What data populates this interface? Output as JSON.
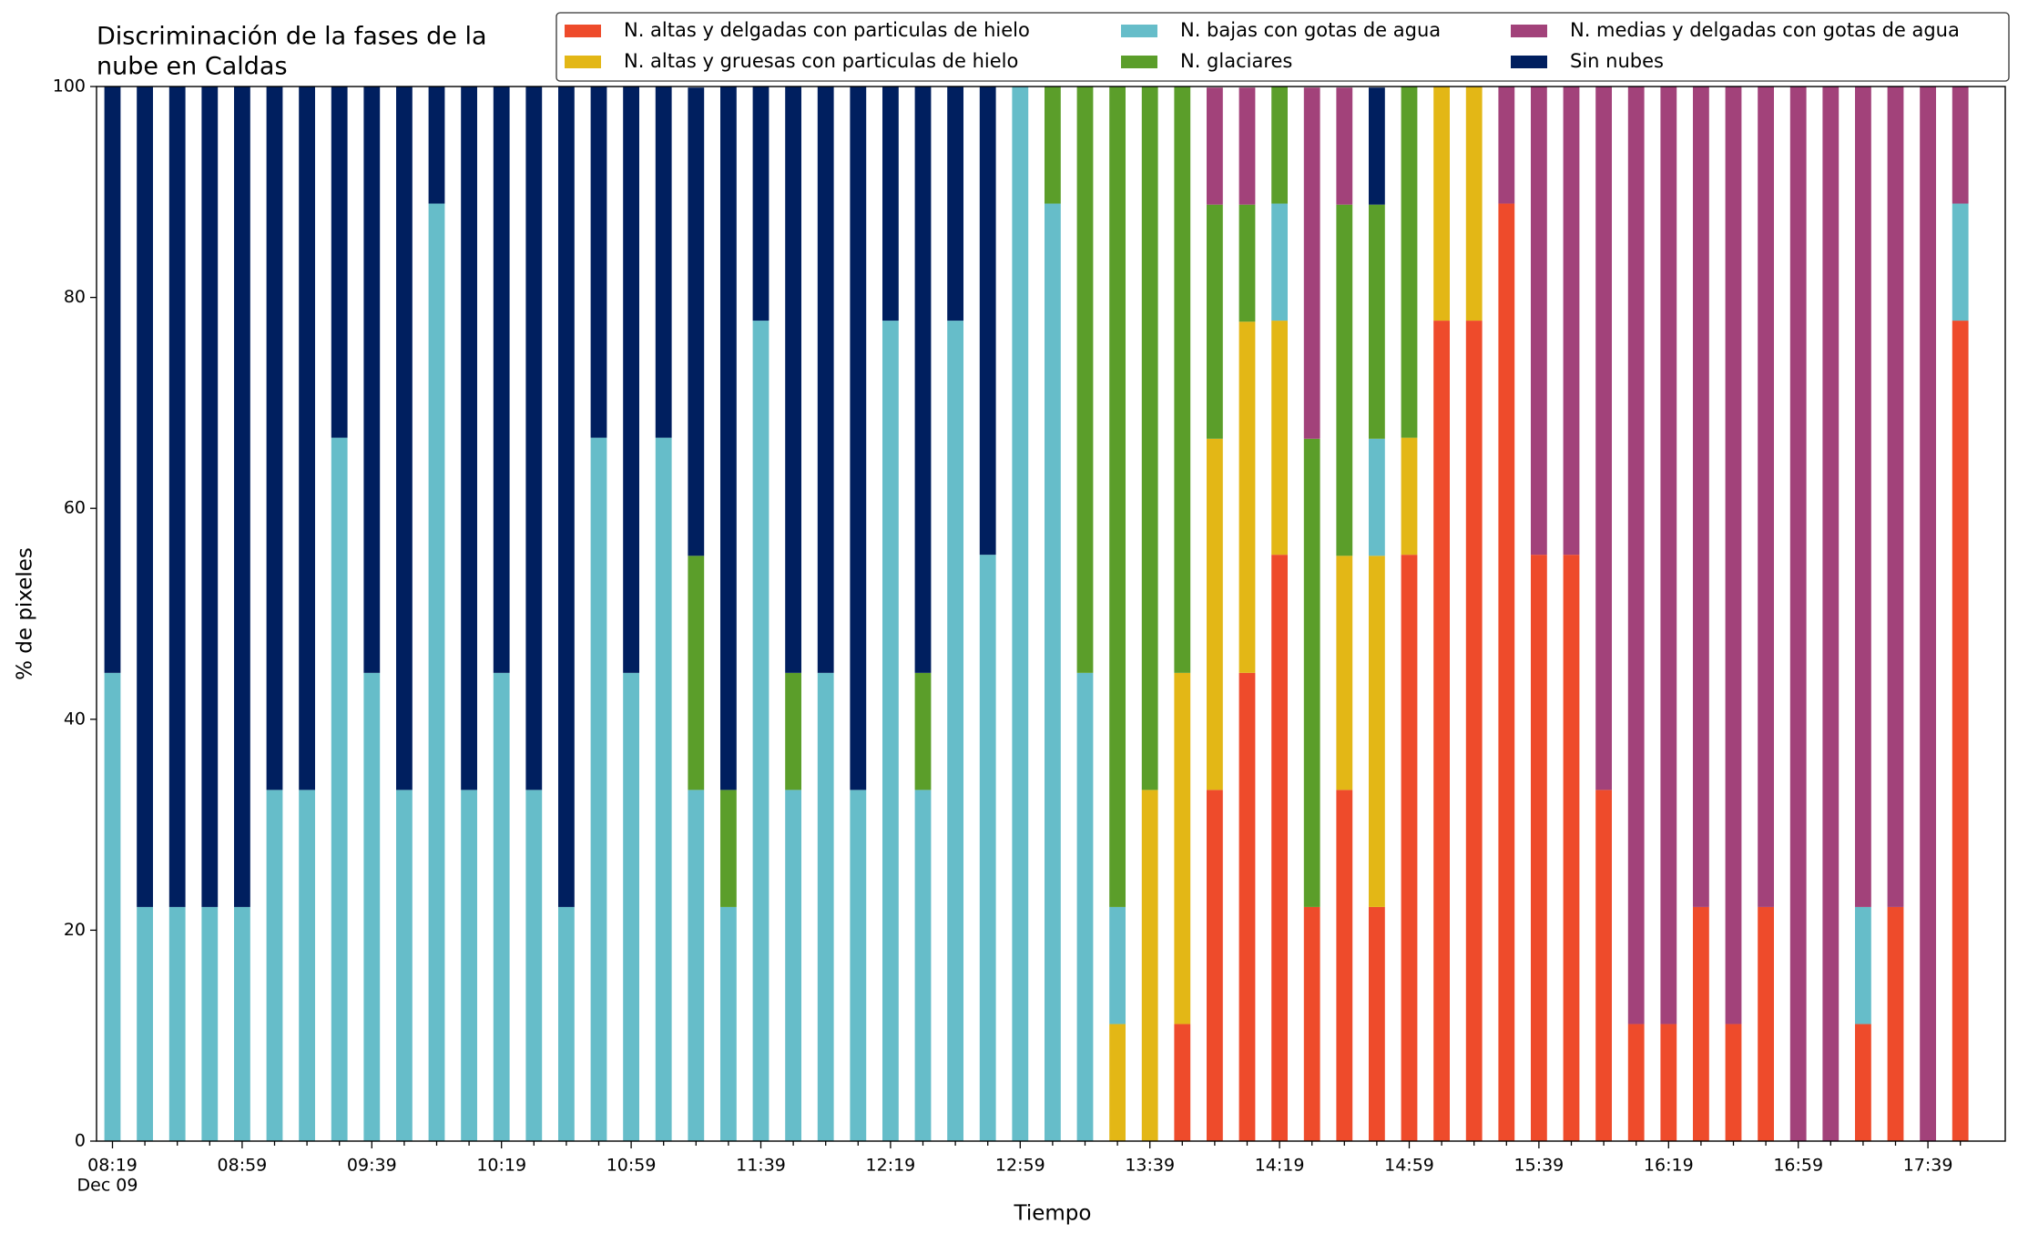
{
  "chart_data": {
    "type": "stacked_bar",
    "title": [
      "Discriminación de la fases de la",
      "nube en Caldas"
    ],
    "xlabel": "Tiempo",
    "ylabel": "% de pixeles",
    "x_sublabel": "Dec 09",
    "categories": [
      "08:19",
      null,
      null,
      null,
      "08:59",
      null,
      null,
      null,
      "09:39",
      null,
      null,
      null,
      "10:19",
      null,
      null,
      null,
      "10:59",
      null,
      null,
      null,
      "11:39",
      null,
      null,
      null,
      "12:19",
      null,
      null,
      null,
      "12:59",
      null,
      null,
      null,
      "13:39",
      null,
      null,
      null,
      "14:19",
      null,
      null,
      null,
      "14:59",
      null,
      null,
      null,
      "15:39",
      null,
      null,
      null,
      "16:19",
      null,
      null,
      null,
      "16:59",
      null,
      null,
      null,
      "17:39",
      null
    ],
    "ylim": [
      0,
      100
    ],
    "yticks": [
      0,
      20,
      40,
      60,
      80,
      100
    ],
    "legend": "top-right",
    "series": [
      {
        "name": "N. altas y delgadas con particulas de hielo",
        "color": "#ee4b2b",
        "values": [
          0,
          0,
          0,
          0,
          0,
          0,
          0,
          0,
          0,
          0,
          0,
          0,
          0,
          0,
          0,
          0,
          0,
          0,
          0,
          0,
          0,
          0,
          0,
          0,
          0,
          0,
          0,
          0,
          0,
          0,
          0,
          0,
          0,
          11.1,
          33.3,
          44.4,
          55.6,
          22.2,
          33.3,
          22.2,
          55.6,
          77.8,
          77.8,
          88.9,
          55.6,
          55.6,
          33.3,
          11.1,
          11.1,
          22.2,
          11.1,
          22.2,
          0,
          0,
          11.1,
          22.2,
          0,
          77.8
        ]
      },
      {
        "name": "N. altas y gruesas con particulas de hielo",
        "color": "#e3b716",
        "values": [
          0,
          0,
          0,
          0,
          0,
          0,
          0,
          0,
          0,
          0,
          0,
          0,
          0,
          0,
          0,
          0,
          0,
          0,
          0,
          0,
          0,
          0,
          0,
          0,
          0,
          0,
          0,
          0,
          0,
          0,
          0,
          11.1,
          33.3,
          33.3,
          33.3,
          33.3,
          22.2,
          0,
          22.2,
          33.3,
          11.1,
          22.2,
          22.2,
          0,
          0,
          0,
          0,
          0,
          0,
          0,
          0,
          0,
          0,
          0,
          0,
          0,
          0,
          0
        ]
      },
      {
        "name": "N. bajas con gotas de agua",
        "color": "#66bdc9",
        "values": [
          44.4,
          22.2,
          22.2,
          22.2,
          22.2,
          33.3,
          33.3,
          66.7,
          44.4,
          33.3,
          88.9,
          33.3,
          44.4,
          33.3,
          22.2,
          66.7,
          44.4,
          66.7,
          33.3,
          22.2,
          77.8,
          33.3,
          44.4,
          33.3,
          77.8,
          33.3,
          77.8,
          55.6,
          100,
          88.9,
          44.4,
          11.1,
          0,
          0,
          0,
          0,
          11.1,
          0,
          0,
          11.1,
          0,
          0,
          0,
          0,
          0,
          0,
          0,
          0,
          0,
          0,
          0,
          0,
          0,
          0,
          11.1,
          0,
          0,
          11.1
        ]
      },
      {
        "name": "N. glaciares",
        "color": "#5b9e2a",
        "values": [
          0,
          0,
          0,
          0,
          0,
          0,
          0,
          0,
          0,
          0,
          0,
          0,
          0,
          0,
          0,
          0,
          0,
          0,
          22.2,
          11.1,
          0,
          11.1,
          0,
          0,
          0,
          11.1,
          0,
          0,
          0,
          11.1,
          55.6,
          77.8,
          66.7,
          55.6,
          22.2,
          11.1,
          11.1,
          44.4,
          33.3,
          22.2,
          33.3,
          0,
          0,
          0,
          0,
          0,
          0,
          0,
          0,
          0,
          0,
          0,
          0,
          0,
          0,
          0,
          0,
          0
        ]
      },
      {
        "name": "N. medias y delgadas con gotas de agua",
        "color": "#a2427a",
        "values": [
          0,
          0,
          0,
          0,
          0,
          0,
          0,
          0,
          0,
          0,
          0,
          0,
          0,
          0,
          0,
          0,
          0,
          0,
          0,
          0,
          0,
          0,
          0,
          0,
          0,
          0,
          0,
          0,
          0,
          0,
          0,
          0,
          0,
          0,
          11.1,
          11.1,
          0,
          33.3,
          11.1,
          0,
          0,
          0,
          0,
          11.1,
          44.4,
          44.4,
          66.7,
          88.9,
          88.9,
          77.8,
          88.9,
          77.8,
          100,
          100,
          77.8,
          77.8,
          100,
          11.1
        ]
      },
      {
        "name": "Sin nubes",
        "color": "#001f5f",
        "values": [
          55.6,
          77.8,
          77.8,
          77.8,
          77.8,
          66.7,
          66.7,
          33.3,
          55.6,
          66.7,
          11.1,
          66.7,
          55.6,
          66.7,
          77.8,
          33.3,
          55.6,
          33.3,
          44.4,
          66.7,
          22.2,
          55.6,
          55.6,
          66.7,
          22.2,
          55.6,
          22.2,
          44.4,
          0,
          0,
          0,
          0,
          0,
          0,
          0,
          0,
          0,
          0,
          0,
          11.1,
          0,
          0,
          0,
          0,
          0,
          0,
          0,
          0,
          0,
          0,
          0,
          0,
          0,
          0,
          0,
          0,
          0,
          0
        ]
      }
    ]
  }
}
